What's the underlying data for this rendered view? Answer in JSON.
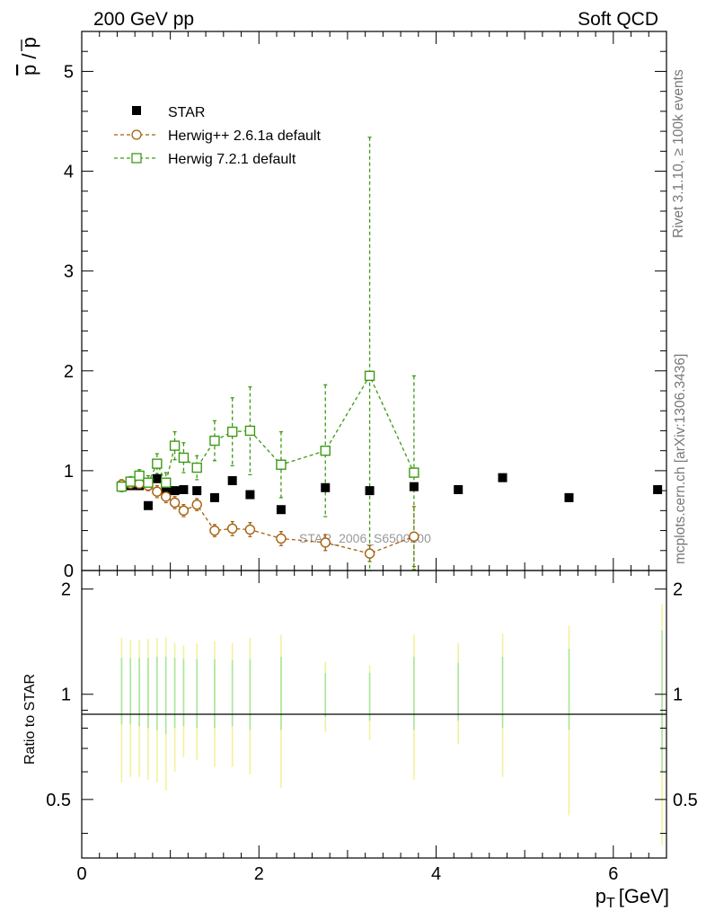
{
  "header": {
    "left": "200 GeV pp",
    "right": "Soft QCD"
  },
  "side_text": {
    "rivet": "Rivet 3.1.10, ≥ 100k events",
    "source": "mcplots.cern.ch [arXiv:1306.3436]"
  },
  "watermark": "STAR_2006_S6500200",
  "colors": {
    "star": "#000000",
    "herwigpp": "#a65f0c",
    "herwig7": "#3d9a14",
    "band_green": "#a8e6a0",
    "band_yellow": "#f2f29a"
  },
  "chart_data": [
    {
      "type": "scatter",
      "panel": "main",
      "ylabel": "p̄ / p",
      "xlim": [
        0,
        6.6
      ],
      "ylim": [
        0,
        5.4
      ],
      "yticks": [
        "0",
        "1",
        "2",
        "3",
        "4",
        "5"
      ],
      "legend_position": "top-left",
      "series": [
        {
          "name": "STAR",
          "marker": "filled-square",
          "x": [
            0.45,
            0.55,
            0.65,
            0.75,
            0.85,
            0.95,
            1.05,
            1.15,
            1.3,
            1.5,
            1.7,
            1.9,
            2.25,
            2.75,
            3.25,
            3.75,
            4.25,
            4.75,
            5.5,
            6.5
          ],
          "y": [
            0.84,
            0.85,
            0.85,
            0.65,
            0.92,
            0.81,
            0.8,
            0.81,
            0.8,
            0.73,
            0.9,
            0.76,
            0.61,
            0.83,
            0.8,
            0.84,
            0.81,
            0.93,
            0.73,
            0.81
          ]
        },
        {
          "name": "Herwig++ 2.6.1a default",
          "marker": "open-circle",
          "x": [
            0.45,
            0.55,
            0.65,
            0.75,
            0.85,
            0.95,
            1.05,
            1.15,
            1.3,
            1.5,
            1.7,
            1.9,
            2.25,
            2.75,
            3.25,
            3.75
          ],
          "y": [
            0.86,
            0.87,
            0.87,
            0.85,
            0.79,
            0.74,
            0.68,
            0.6,
            0.66,
            0.4,
            0.42,
            0.41,
            0.32,
            0.28,
            0.17,
            0.34
          ],
          "yerr": [
            0.05,
            0.05,
            0.05,
            0.05,
            0.06,
            0.06,
            0.06,
            0.06,
            0.06,
            0.06,
            0.07,
            0.07,
            0.07,
            0.08,
            0.08,
            0.3
          ]
        },
        {
          "name": "Herwig 7.2.1 default",
          "marker": "open-square",
          "x": [
            0.45,
            0.55,
            0.65,
            0.75,
            0.85,
            0.95,
            1.05,
            1.15,
            1.3,
            1.5,
            1.7,
            1.9,
            2.25,
            2.75,
            3.25,
            3.75
          ],
          "y": [
            0.84,
            0.89,
            0.95,
            0.88,
            1.07,
            0.88,
            1.25,
            1.13,
            1.03,
            1.3,
            1.39,
            1.4,
            1.06,
            1.2,
            1.95,
            0.98
          ],
          "yerr": [
            0.05,
            0.05,
            0.06,
            0.07,
            0.1,
            0.1,
            0.14,
            0.15,
            0.12,
            0.2,
            0.34,
            0.44,
            0.33,
            0.66,
            2.39,
            0.97
          ]
        }
      ]
    },
    {
      "type": "scatter",
      "panel": "ratio",
      "ylabel": "Ratio to STAR",
      "xlabel": "p_T [GeV]",
      "xlim": [
        0,
        6.6
      ],
      "ylim": [
        0.34,
        2.26
      ],
      "xticks": [
        "0",
        "2",
        "4",
        "6"
      ],
      "yticks": [
        "0.5",
        "1",
        "2"
      ],
      "reference_line": 1,
      "bands": [
        {
          "x": 0.45,
          "yellow": [
            0.56,
            1.45
          ],
          "green": [
            0.82,
            1.27
          ]
        },
        {
          "x": 0.55,
          "yellow": [
            0.58,
            1.43
          ],
          "green": [
            0.82,
            1.27
          ]
        },
        {
          "x": 0.65,
          "yellow": [
            0.58,
            1.43
          ],
          "green": [
            0.81,
            1.27
          ]
        },
        {
          "x": 0.75,
          "yellow": [
            0.57,
            1.44
          ],
          "green": [
            0.8,
            1.27
          ]
        },
        {
          "x": 0.85,
          "yellow": [
            0.56,
            1.45
          ],
          "green": [
            0.79,
            1.28
          ]
        },
        {
          "x": 0.95,
          "yellow": [
            0.53,
            1.46
          ],
          "green": [
            0.77,
            1.28
          ]
        },
        {
          "x": 1.05,
          "yellow": [
            0.6,
            1.4
          ],
          "green": [
            0.8,
            1.27
          ]
        },
        {
          "x": 1.15,
          "yellow": [
            0.66,
            1.38
          ],
          "green": [
            0.81,
            1.26
          ]
        },
        {
          "x": 1.3,
          "yellow": [
            0.65,
            1.4
          ],
          "green": [
            0.8,
            1.26
          ]
        },
        {
          "x": 1.5,
          "yellow": [
            0.62,
            1.42
          ],
          "green": [
            0.8,
            1.26
          ]
        },
        {
          "x": 1.7,
          "yellow": [
            0.62,
            1.4
          ],
          "green": [
            0.81,
            1.25
          ]
        },
        {
          "x": 1.9,
          "yellow": [
            0.59,
            1.45
          ],
          "green": [
            0.79,
            1.26
          ]
        },
        {
          "x": 2.25,
          "yellow": [
            0.54,
            1.48
          ],
          "green": [
            0.79,
            1.28
          ]
        },
        {
          "x": 2.75,
          "yellow": [
            0.78,
            1.24
          ],
          "green": [
            0.86,
            1.15
          ]
        },
        {
          "x": 3.25,
          "yellow": [
            0.74,
            1.21
          ],
          "green": [
            0.84,
            1.15
          ]
        },
        {
          "x": 3.75,
          "yellow": [
            0.57,
            1.48
          ],
          "green": [
            0.79,
            1.28
          ]
        },
        {
          "x": 4.25,
          "yellow": [
            0.72,
            1.4
          ],
          "green": [
            0.84,
            1.23
          ]
        },
        {
          "x": 4.75,
          "yellow": [
            0.58,
            1.49
          ],
          "green": [
            0.8,
            1.28
          ]
        },
        {
          "x": 5.5,
          "yellow": [
            0.45,
            1.57
          ],
          "green": [
            0.79,
            1.35
          ]
        },
        {
          "x": 6.55,
          "yellow": [
            0.37,
            1.81
          ],
          "green": [
            0.6,
            1.52
          ]
        }
      ]
    }
  ]
}
